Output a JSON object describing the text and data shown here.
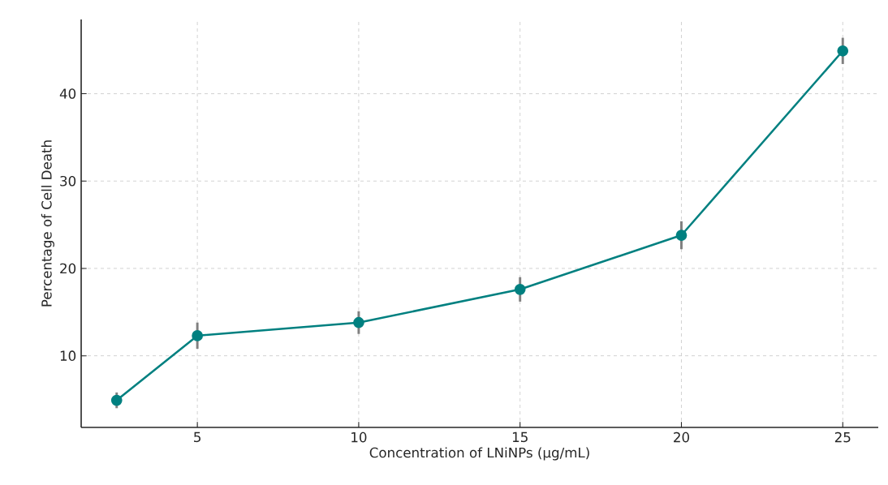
{
  "chart_data": {
    "type": "line",
    "xlabel": "Concentration of LNiNPs (µg/mL)",
    "ylabel": "Percentage of Cell Death",
    "x": [
      2.5,
      5,
      10,
      15,
      20,
      25
    ],
    "series": [
      {
        "color": "#008080",
        "values": [
          4.9,
          12.3,
          13.8,
          17.6,
          23.8,
          44.9
        ],
        "errors": [
          0.9,
          1.5,
          1.3,
          1.4,
          1.6,
          1.5
        ]
      }
    ],
    "xlim": [
      1.4,
      26.1
    ],
    "ylim": [
      1.8,
      48.5
    ],
    "xticks": [
      5,
      10,
      15,
      20,
      25
    ],
    "yticks": [
      10,
      20,
      30,
      40
    ],
    "grid": true,
    "marker": "circle",
    "line_style": "solid"
  }
}
